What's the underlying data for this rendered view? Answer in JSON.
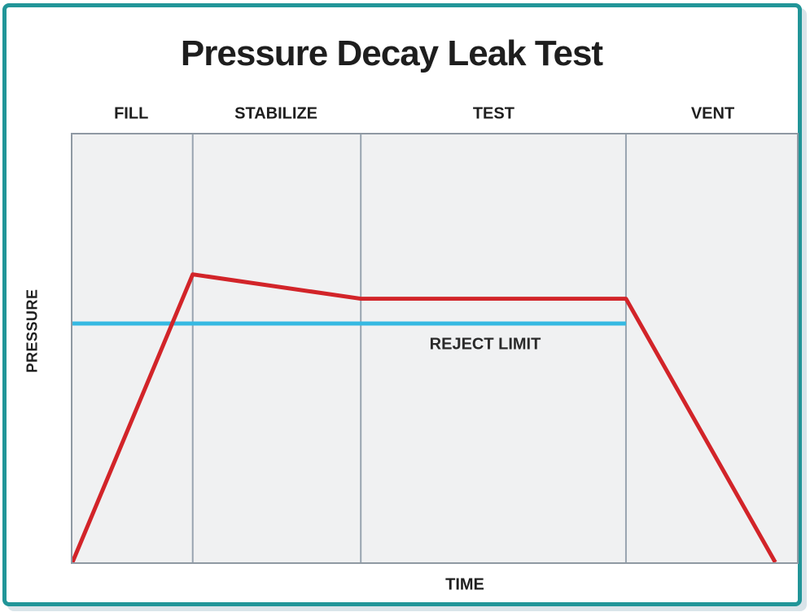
{
  "colors": {
    "frame_border": "#219598",
    "curve_red": "#d22429",
    "reject_limit_blue": "#35b9e2",
    "phase_divider": "#98a4b0",
    "plot_border": "#8f99a3",
    "plot_background": "#f0f1f2",
    "text": "#1e1e1e"
  },
  "chart_data": {
    "type": "line",
    "title": "Pressure Decay Leak Test",
    "xlabel": "TIME",
    "ylabel": "PRESSURE",
    "x_axis": {
      "range": [
        0,
        1
      ],
      "unit": "normalized time, no tick labels shown"
    },
    "y_axis": {
      "range": [
        0,
        1
      ],
      "unit": "normalized pressure, no tick labels shown"
    },
    "grid": "vertical phase dividers only",
    "legend": "none",
    "phases": [
      {
        "name": "FILL",
        "x_start": 0.0,
        "x_end": 0.166
      },
      {
        "name": "STABILIZE",
        "x_start": 0.166,
        "x_end": 0.398
      },
      {
        "name": "TEST",
        "x_start": 0.398,
        "x_end": 0.764
      },
      {
        "name": "VENT",
        "x_start": 0.764,
        "x_end": 1.0
      }
    ],
    "series": [
      {
        "name": "reject-limit",
        "label": "REJECT LIMIT",
        "color": "#35b9e2",
        "stroke_width": 5,
        "points": [
          [
            0.0,
            0.558
          ],
          [
            0.764,
            0.558
          ]
        ]
      },
      {
        "name": "pressure-curve",
        "label": "pressure",
        "color": "#d22429",
        "stroke_width": 5,
        "points": [
          [
            0.0,
            0.0
          ],
          [
            0.166,
            0.673
          ],
          [
            0.398,
            0.616
          ],
          [
            0.764,
            0.616
          ],
          [
            0.97,
            0.0
          ]
        ]
      }
    ]
  }
}
